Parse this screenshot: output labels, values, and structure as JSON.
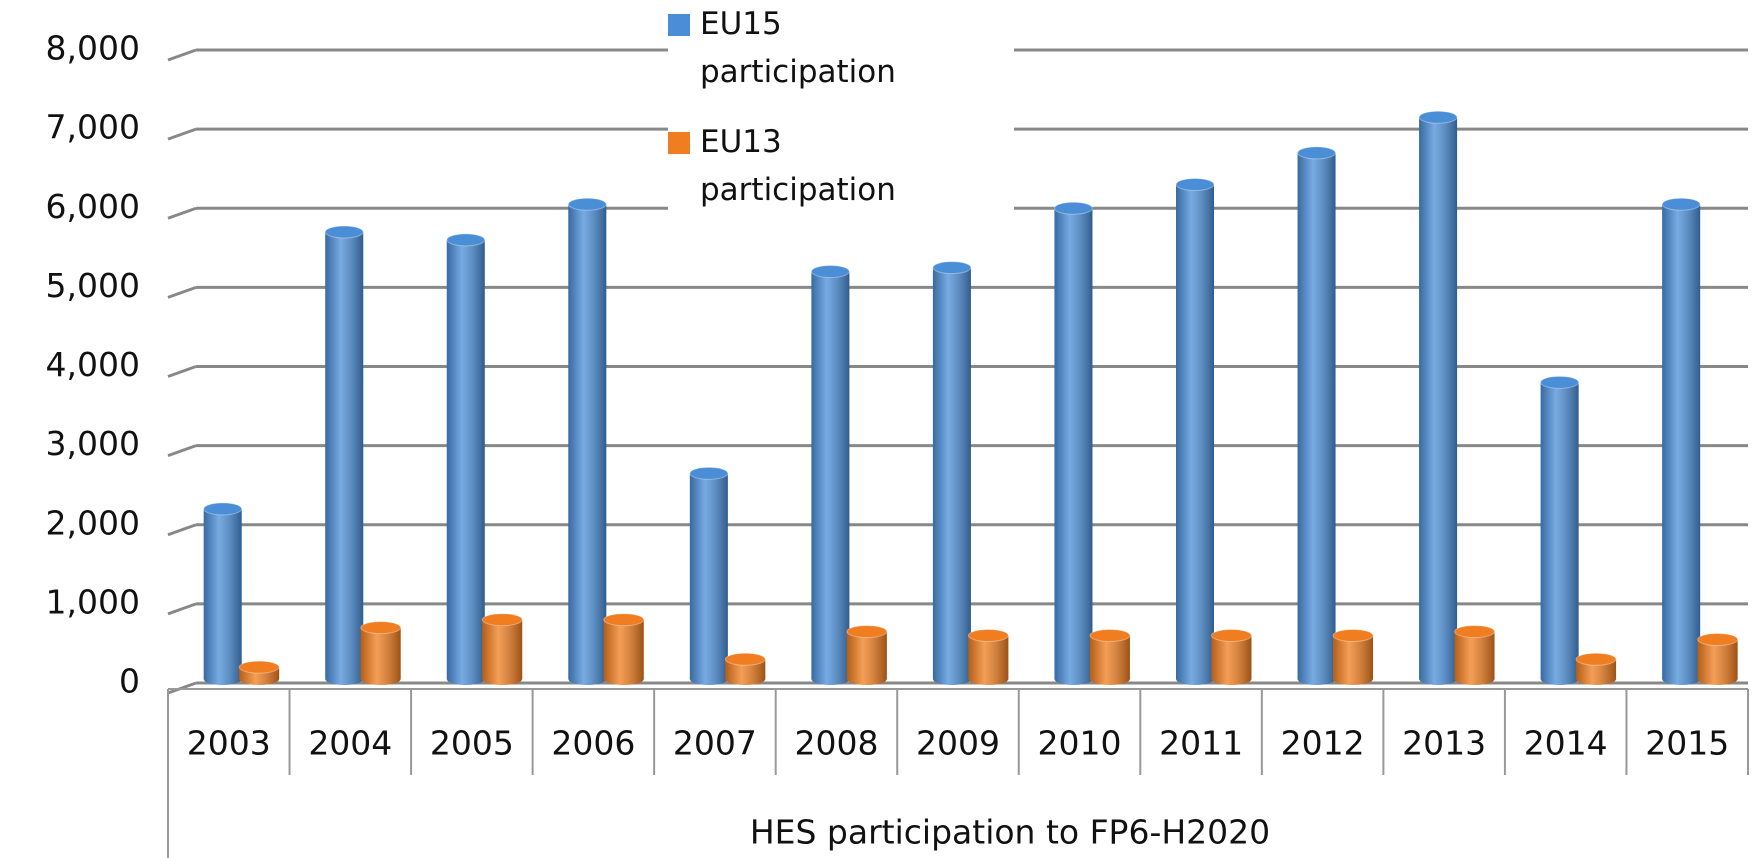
{
  "chart_data": {
    "type": "bar3d",
    "x_label": "HES participation to FP6-H2020",
    "categories": [
      "2003",
      "2004",
      "2005",
      "2006",
      "2007",
      "2008",
      "2009",
      "2010",
      "2011",
      "2012",
      "2013",
      "2014",
      "2015"
    ],
    "series": [
      {
        "name": "EU15 participation",
        "color": "#4a8ed8",
        "values": [
          2200,
          5700,
          5600,
          6050,
          2650,
          5200,
          5250,
          6000,
          6300,
          6700,
          7150,
          3800,
          6050
        ]
      },
      {
        "name": "EU13 participation",
        "color": "#f07d1f",
        "values": [
          200,
          700,
          800,
          800,
          300,
          650,
          600,
          600,
          600,
          600,
          650,
          300,
          550
        ]
      }
    ],
    "ylim": [
      0,
      8000
    ],
    "yticks": [
      0,
      {
        "value": 1000,
        "label": "1,000"
      },
      {
        "value": 2000,
        "label": "2,000"
      },
      {
        "value": 3000,
        "label": "3,000"
      },
      {
        "value": 4000,
        "label": "4,000"
      },
      {
        "value": 5000,
        "label": "5,000"
      },
      {
        "value": 6000,
        "label": "6,000"
      },
      {
        "value": 7000,
        "label": "7,000"
      },
      {
        "value": 8000,
        "label": "8,000"
      }
    ],
    "grid": true
  }
}
